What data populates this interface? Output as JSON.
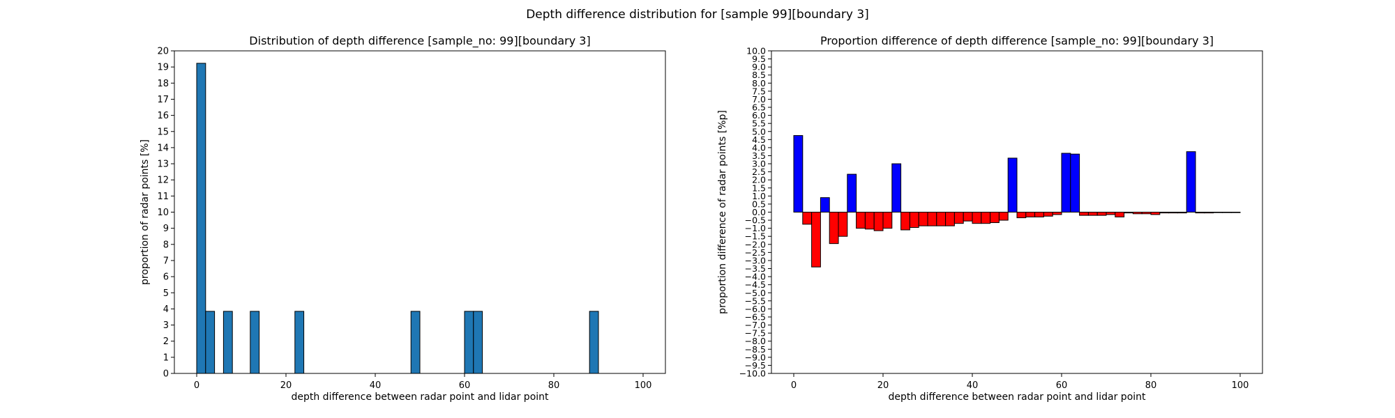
{
  "figure": {
    "suptitle": "Depth difference distribution for [sample 99][boundary 3]"
  },
  "chart_data": [
    {
      "type": "bar",
      "title": "Distribution of depth difference [sample_no: 99][boundary 3]",
      "xlabel": "depth difference between radar point and lidar point",
      "ylabel": "proportion of radar points [%]",
      "xlim": [
        -5,
        105
      ],
      "ylim": [
        0,
        20
      ],
      "xticks": [
        0,
        20,
        40,
        60,
        80,
        100
      ],
      "yticks": [
        0,
        1,
        2,
        3,
        4,
        5,
        6,
        7,
        8,
        9,
        10,
        11,
        12,
        13,
        14,
        15,
        16,
        17,
        18,
        19,
        20
      ],
      "bin_width": 2,
      "bar_color": "#1f77b4",
      "edge_color": "#000000",
      "bins": [
        0,
        2,
        4,
        6,
        8,
        10,
        12,
        14,
        16,
        18,
        20,
        22,
        24,
        26,
        28,
        30,
        32,
        34,
        36,
        38,
        40,
        42,
        44,
        46,
        48,
        50,
        52,
        54,
        56,
        58,
        60,
        62,
        64,
        66,
        68,
        70,
        72,
        74,
        76,
        78,
        80,
        82,
        84,
        86,
        88,
        90,
        92,
        94,
        96,
        98
      ],
      "values": [
        19.23,
        3.85,
        0,
        3.85,
        0,
        0,
        3.85,
        0,
        0,
        0,
        0,
        3.85,
        0,
        0,
        0,
        0,
        0,
        0,
        0,
        0,
        0,
        0,
        0,
        0,
        3.85,
        0,
        0,
        0,
        0,
        0,
        3.85,
        3.85,
        0,
        0,
        0,
        0,
        0,
        0,
        0,
        0,
        0,
        0,
        0,
        0,
        3.85,
        0,
        0,
        0,
        0,
        0
      ]
    },
    {
      "type": "bar",
      "title": "Proportion difference of depth difference [sample_no: 99][boundary 3]",
      "xlabel": "depth difference between radar point and lidar point",
      "ylabel": "proportion difference of radar points [%p]",
      "xlim": [
        -5,
        105
      ],
      "ylim": [
        -10,
        10
      ],
      "xticks": [
        0,
        20,
        40,
        60,
        80,
        100
      ],
      "ytick_step": 0.5,
      "bin_width": 2,
      "positive_color": "#0000ff",
      "negative_color": "#ff0000",
      "edge_color": "#000000",
      "bins": [
        0,
        2,
        4,
        6,
        8,
        10,
        12,
        14,
        16,
        18,
        20,
        22,
        24,
        26,
        28,
        30,
        32,
        34,
        36,
        38,
        40,
        42,
        44,
        46,
        48,
        50,
        52,
        54,
        56,
        58,
        60,
        62,
        64,
        66,
        68,
        70,
        72,
        74,
        76,
        78,
        80,
        82,
        84,
        86,
        88,
        90,
        92,
        94,
        96,
        98
      ],
      "values": [
        4.75,
        -0.75,
        -3.4,
        0.9,
        -1.95,
        -1.5,
        2.35,
        -1.0,
        -1.05,
        -1.15,
        -1.0,
        3.0,
        -1.1,
        -0.95,
        -0.85,
        -0.85,
        -0.85,
        -0.85,
        -0.7,
        -0.55,
        -0.7,
        -0.7,
        -0.65,
        -0.5,
        3.35,
        -0.35,
        -0.3,
        -0.3,
        -0.25,
        -0.15,
        3.65,
        3.6,
        -0.2,
        -0.2,
        -0.2,
        -0.15,
        -0.3,
        -0.05,
        -0.1,
        -0.1,
        -0.15,
        -0.05,
        -0.05,
        -0.05,
        3.75,
        -0.05,
        -0.05,
        -0.03,
        -0.03,
        -0.03
      ]
    }
  ]
}
